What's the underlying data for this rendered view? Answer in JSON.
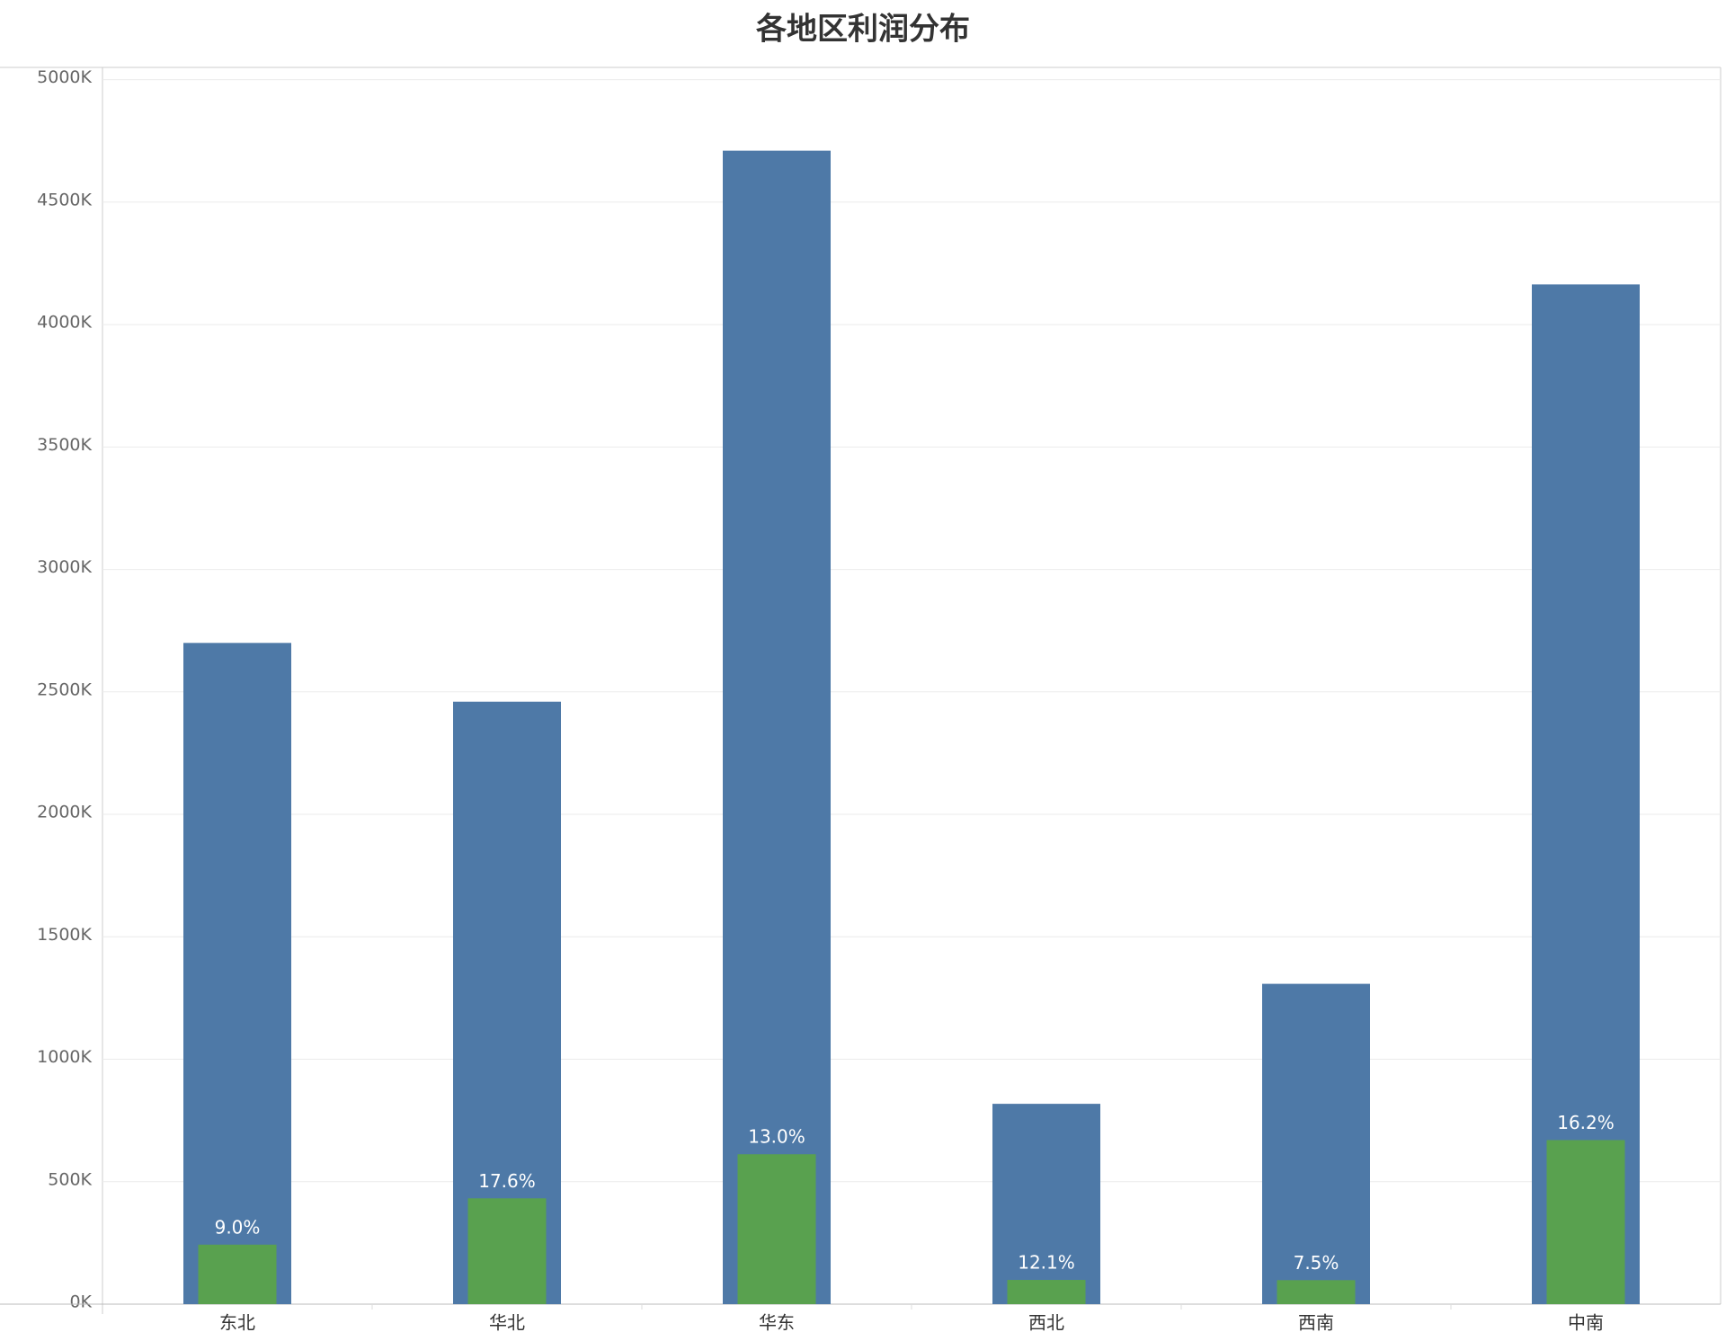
{
  "chart_data": {
    "type": "bar",
    "title": "各地区利润分布",
    "categories": [
      "东北",
      "华北",
      "华东",
      "西北",
      "西南",
      "中南"
    ],
    "series": [
      {
        "color": "#4e79a7",
        "values": [
          2700,
          2460,
          4710,
          818,
          1308,
          4164
        ]
      },
      {
        "color": "#59a14f",
        "values": [
          243,
          432,
          612,
          99,
          98,
          670
        ],
        "data_labels": [
          {
            "value": 9.0,
            "label": "9.0%"
          },
          {
            "value": 17.6,
            "label": "17.6%"
          },
          {
            "value": 13.0,
            "label": "13.0%"
          },
          {
            "value": 12.1,
            "label": "12.1%"
          },
          {
            "value": 7.5,
            "label": "7.5%"
          },
          {
            "value": 16.2,
            "label": "16.2%"
          }
        ]
      }
    ],
    "ylim": [
      0,
      5050
    ],
    "yticks": [
      {
        "value": 0,
        "label": "0K"
      },
      {
        "value": 500,
        "label": "500K"
      },
      {
        "value": 1000,
        "label": "1000K"
      },
      {
        "value": 1500,
        "label": "1500K"
      },
      {
        "value": 2000,
        "label": "2000K"
      },
      {
        "value": 2500,
        "label": "2500K"
      },
      {
        "value": 3000,
        "label": "3000K"
      },
      {
        "value": 3500,
        "label": "3500K"
      },
      {
        "value": 4000,
        "label": "4000K"
      },
      {
        "value": 4500,
        "label": "4500K"
      },
      {
        "value": 5000,
        "label": "5000K"
      }
    ],
    "grid": true
  }
}
